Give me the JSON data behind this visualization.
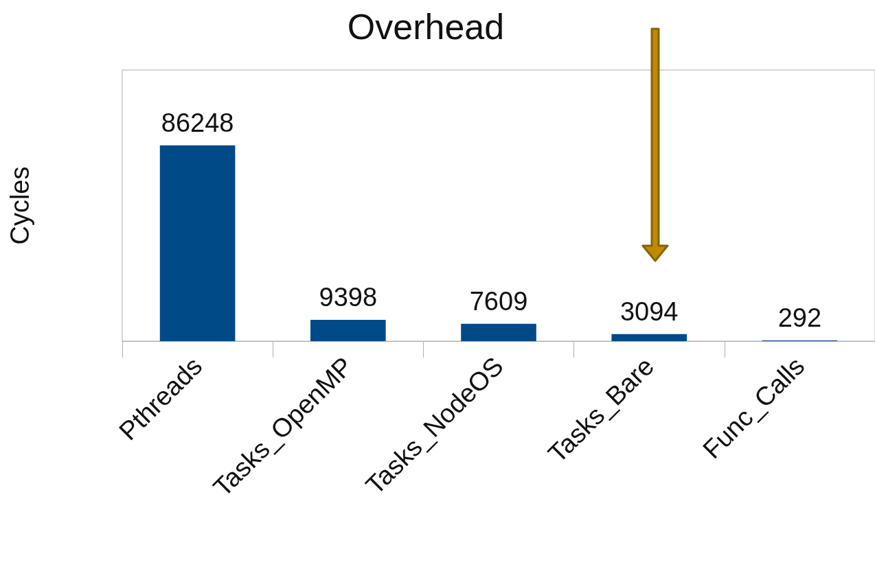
{
  "chart_data": {
    "type": "bar",
    "title": "Overhead",
    "ylabel": "Cycles",
    "categories": [
      "Pthreads",
      "Tasks_OpenMP",
      "Tasks_NodeOS",
      "Tasks_Bare",
      "Func_Calls"
    ],
    "values": [
      86248,
      9398,
      7609,
      3094,
      292
    ],
    "color": "#004a87",
    "data_labels": true,
    "grid": false,
    "tick_labels": "x"
  }
}
